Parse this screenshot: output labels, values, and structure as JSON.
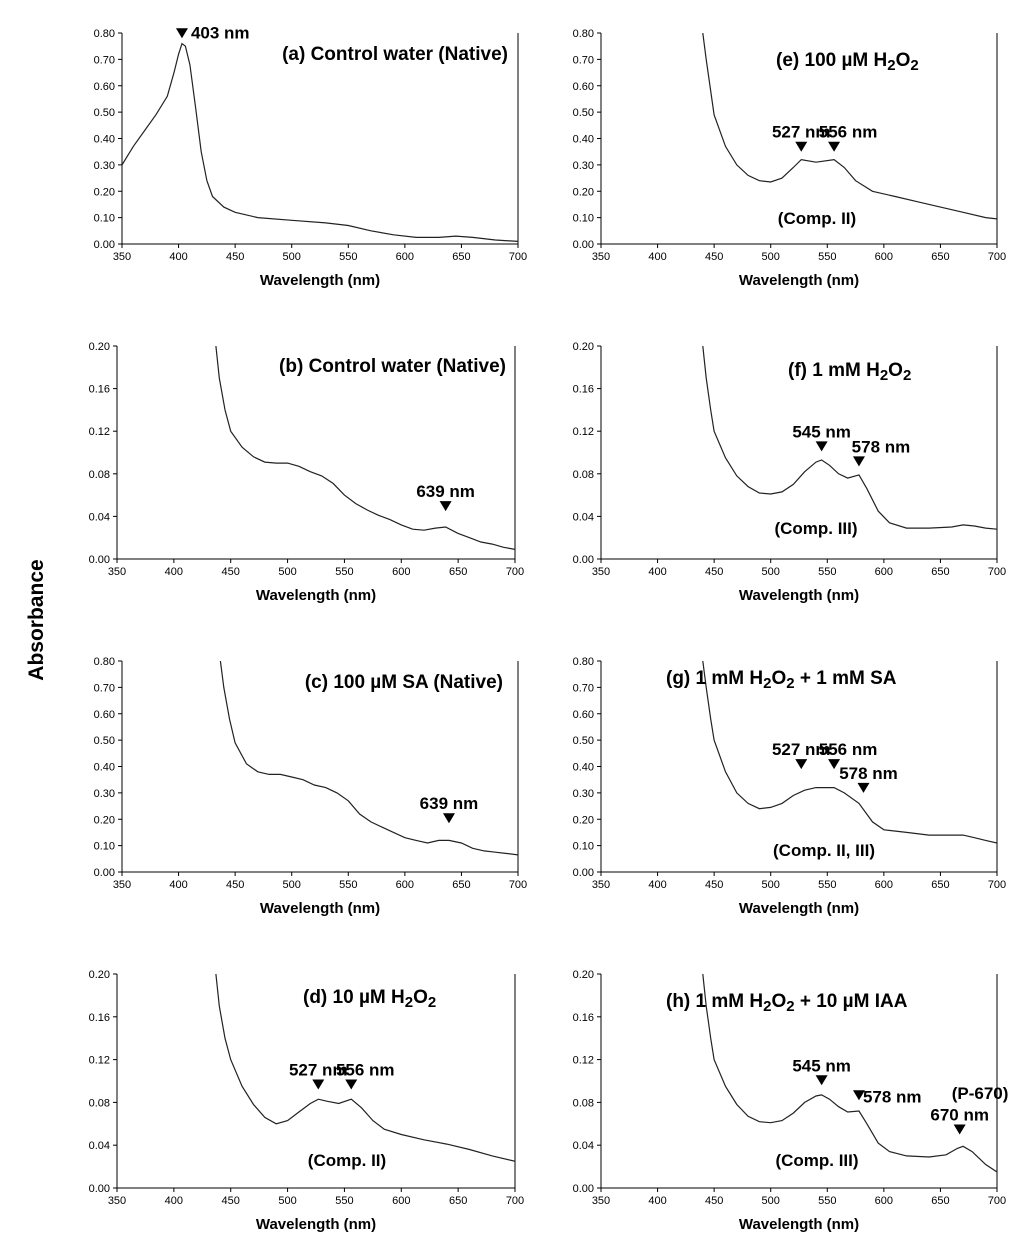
{
  "y_axis_label": "Absorbance",
  "chart_data": [
    {
      "panel": "a",
      "type": "line",
      "title": "(a) Control water (Native)",
      "xlabel": "Wavelength (nm)",
      "xlim": [
        350,
        700
      ],
      "ylim": [
        0,
        0.8
      ],
      "xticks": [
        "350",
        "400",
        "450",
        "500",
        "550",
        "600",
        "650",
        "700"
      ],
      "yticks": [
        "0.00",
        "0.10",
        "0.20",
        "0.30",
        "0.40",
        "0.50",
        "0.60",
        "0.70",
        "0.80"
      ],
      "points": [
        [
          350,
          0.3
        ],
        [
          360,
          0.37
        ],
        [
          370,
          0.43
        ],
        [
          380,
          0.49
        ],
        [
          390,
          0.56
        ],
        [
          396,
          0.65
        ],
        [
          400,
          0.72
        ],
        [
          403,
          0.76
        ],
        [
          406,
          0.75
        ],
        [
          410,
          0.68
        ],
        [
          415,
          0.52
        ],
        [
          420,
          0.35
        ],
        [
          425,
          0.24
        ],
        [
          430,
          0.18
        ],
        [
          440,
          0.14
        ],
        [
          450,
          0.12
        ],
        [
          470,
          0.1
        ],
        [
          500,
          0.09
        ],
        [
          530,
          0.08
        ],
        [
          550,
          0.07
        ],
        [
          570,
          0.05
        ],
        [
          590,
          0.035
        ],
        [
          610,
          0.025
        ],
        [
          630,
          0.025
        ],
        [
          645,
          0.03
        ],
        [
          660,
          0.025
        ],
        [
          680,
          0.015
        ],
        [
          700,
          0.01
        ]
      ],
      "annotations": [
        {
          "label": "403 nm",
          "x": 403,
          "y": 0.78
        }
      ]
    },
    {
      "panel": "b",
      "type": "line",
      "title": "(b) Control water (Native)",
      "xlabel": "Wavelength (nm)",
      "xlim": [
        350,
        700
      ],
      "ylim": [
        0,
        0.2
      ],
      "xticks": [
        "350",
        "400",
        "450",
        "500",
        "550",
        "600",
        "650",
        "700"
      ],
      "yticks": [
        "0.00",
        "0.04",
        "0.08",
        "0.12",
        "0.16",
        "0.20"
      ],
      "points": [
        [
          437,
          0.2
        ],
        [
          440,
          0.17
        ],
        [
          445,
          0.14
        ],
        [
          450,
          0.12
        ],
        [
          460,
          0.105
        ],
        [
          470,
          0.096
        ],
        [
          480,
          0.091
        ],
        [
          490,
          0.09
        ],
        [
          500,
          0.09
        ],
        [
          510,
          0.087
        ],
        [
          520,
          0.082
        ],
        [
          530,
          0.078
        ],
        [
          540,
          0.071
        ],
        [
          550,
          0.06
        ],
        [
          560,
          0.052
        ],
        [
          570,
          0.046
        ],
        [
          580,
          0.041
        ],
        [
          590,
          0.037
        ],
        [
          600,
          0.032
        ],
        [
          610,
          0.028
        ],
        [
          620,
          0.027
        ],
        [
          630,
          0.029
        ],
        [
          639,
          0.03
        ],
        [
          650,
          0.024
        ],
        [
          660,
          0.02
        ],
        [
          670,
          0.016
        ],
        [
          680,
          0.014
        ],
        [
          690,
          0.011
        ],
        [
          700,
          0.009
        ]
      ],
      "annotations": [
        {
          "label": "639 nm",
          "x": 639,
          "y": 0.045
        }
      ]
    },
    {
      "panel": "c",
      "type": "line",
      "title": "(c) 100 µM SA (Native)",
      "xlabel": "Wavelength (nm)",
      "xlim": [
        350,
        700
      ],
      "ylim": [
        0,
        0.8
      ],
      "xticks": [
        "350",
        "400",
        "450",
        "500",
        "550",
        "600",
        "650",
        "700"
      ],
      "yticks": [
        "0.00",
        "0.10",
        "0.20",
        "0.30",
        "0.40",
        "0.50",
        "0.60",
        "0.70",
        "0.80"
      ],
      "points": [
        [
          437,
          0.8
        ],
        [
          440,
          0.7
        ],
        [
          445,
          0.58
        ],
        [
          450,
          0.49
        ],
        [
          460,
          0.41
        ],
        [
          470,
          0.38
        ],
        [
          480,
          0.37
        ],
        [
          490,
          0.37
        ],
        [
          500,
          0.36
        ],
        [
          510,
          0.35
        ],
        [
          520,
          0.33
        ],
        [
          530,
          0.32
        ],
        [
          540,
          0.3
        ],
        [
          550,
          0.27
        ],
        [
          560,
          0.22
        ],
        [
          570,
          0.19
        ],
        [
          580,
          0.17
        ],
        [
          590,
          0.15
        ],
        [
          600,
          0.13
        ],
        [
          610,
          0.12
        ],
        [
          620,
          0.11
        ],
        [
          630,
          0.12
        ],
        [
          639,
          0.12
        ],
        [
          650,
          0.11
        ],
        [
          660,
          0.09
        ],
        [
          670,
          0.08
        ],
        [
          680,
          0.075
        ],
        [
          690,
          0.07
        ],
        [
          700,
          0.065
        ]
      ],
      "annotations": [
        {
          "label": "639 nm",
          "x": 639,
          "y": 0.185
        }
      ]
    },
    {
      "panel": "d",
      "type": "line",
      "title": "(d) 10 µM H₂O₂",
      "xlabel": "Wavelength (nm)",
      "xlim": [
        350,
        700
      ],
      "ylim": [
        0,
        0.2
      ],
      "xticks": [
        "350",
        "400",
        "450",
        "500",
        "550",
        "600",
        "650",
        "700"
      ],
      "yticks": [
        "0.00",
        "0.04",
        "0.08",
        "0.12",
        "0.16",
        "0.20"
      ],
      "points": [
        [
          437,
          0.2
        ],
        [
          440,
          0.17
        ],
        [
          445,
          0.14
        ],
        [
          450,
          0.12
        ],
        [
          460,
          0.095
        ],
        [
          470,
          0.078
        ],
        [
          480,
          0.066
        ],
        [
          490,
          0.06
        ],
        [
          500,
          0.063
        ],
        [
          510,
          0.071
        ],
        [
          520,
          0.079
        ],
        [
          527,
          0.083
        ],
        [
          535,
          0.081
        ],
        [
          545,
          0.079
        ],
        [
          556,
          0.083
        ],
        [
          565,
          0.075
        ],
        [
          575,
          0.063
        ],
        [
          585,
          0.055
        ],
        [
          600,
          0.05
        ],
        [
          620,
          0.045
        ],
        [
          640,
          0.041
        ],
        [
          660,
          0.036
        ],
        [
          680,
          0.03
        ],
        [
          700,
          0.025
        ]
      ],
      "annotations": [
        {
          "label": "527 nm",
          "x": 527,
          "y": 0.092
        },
        {
          "label": "556 nm",
          "x": 556,
          "y": 0.092
        }
      ],
      "note": "(Comp. II)"
    },
    {
      "panel": "e",
      "type": "line",
      "title": "(e) 100 µM H₂O₂",
      "xlabel": "Wavelength (nm)",
      "xlim": [
        350,
        700
      ],
      "ylim": [
        0,
        0.8
      ],
      "xticks": [
        "350",
        "400",
        "450",
        "500",
        "550",
        "600",
        "650",
        "700"
      ],
      "yticks": [
        "0.00",
        "0.10",
        "0.20",
        "0.30",
        "0.40",
        "0.50",
        "0.60",
        "0.70",
        "0.80"
      ],
      "points": [
        [
          440,
          0.8
        ],
        [
          443,
          0.7
        ],
        [
          447,
          0.58
        ],
        [
          450,
          0.49
        ],
        [
          460,
          0.37
        ],
        [
          470,
          0.3
        ],
        [
          480,
          0.26
        ],
        [
          490,
          0.24
        ],
        [
          500,
          0.235
        ],
        [
          510,
          0.25
        ],
        [
          520,
          0.29
        ],
        [
          527,
          0.32
        ],
        [
          540,
          0.31
        ],
        [
          556,
          0.32
        ],
        [
          565,
          0.29
        ],
        [
          575,
          0.24
        ],
        [
          590,
          0.2
        ],
        [
          610,
          0.18
        ],
        [
          630,
          0.16
        ],
        [
          650,
          0.14
        ],
        [
          670,
          0.12
        ],
        [
          690,
          0.1
        ],
        [
          700,
          0.095
        ]
      ],
      "annotations": [
        {
          "label": "527 nm",
          "x": 527,
          "y": 0.35
        },
        {
          "label": "556 nm",
          "x": 556,
          "y": 0.35
        }
      ],
      "note": "(Comp. II)"
    },
    {
      "panel": "f",
      "type": "line",
      "title": "(f) 1 mM H₂O₂",
      "xlabel": "Wavelength (nm)",
      "xlim": [
        350,
        700
      ],
      "ylim": [
        0,
        0.2
      ],
      "xticks": [
        "350",
        "400",
        "450",
        "500",
        "550",
        "600",
        "650",
        "700"
      ],
      "yticks": [
        "0.00",
        "0.04",
        "0.08",
        "0.12",
        "0.16",
        "0.20"
      ],
      "points": [
        [
          440,
          0.2
        ],
        [
          443,
          0.17
        ],
        [
          447,
          0.14
        ],
        [
          450,
          0.12
        ],
        [
          460,
          0.095
        ],
        [
          470,
          0.078
        ],
        [
          480,
          0.068
        ],
        [
          490,
          0.062
        ],
        [
          500,
          0.061
        ],
        [
          510,
          0.063
        ],
        [
          520,
          0.07
        ],
        [
          530,
          0.082
        ],
        [
          540,
          0.091
        ],
        [
          545,
          0.093
        ],
        [
          552,
          0.088
        ],
        [
          560,
          0.08
        ],
        [
          568,
          0.076
        ],
        [
          578,
          0.079
        ],
        [
          585,
          0.066
        ],
        [
          595,
          0.045
        ],
        [
          605,
          0.034
        ],
        [
          620,
          0.029
        ],
        [
          640,
          0.029
        ],
        [
          660,
          0.03
        ],
        [
          670,
          0.032
        ],
        [
          680,
          0.031
        ],
        [
          690,
          0.029
        ],
        [
          700,
          0.028
        ]
      ],
      "annotations": [
        {
          "label": "545 nm",
          "x": 545,
          "y": 0.101
        },
        {
          "label": "578 nm",
          "x": 578,
          "y": 0.087
        }
      ],
      "note": "(Comp. III)"
    },
    {
      "panel": "g",
      "type": "line",
      "title": "(g) 1 mM H₂O₂ + 1 mM SA",
      "xlabel": "Wavelength (nm)",
      "xlim": [
        350,
        700
      ],
      "ylim": [
        0,
        0.8
      ],
      "xticks": [
        "350",
        "400",
        "450",
        "500",
        "550",
        "600",
        "650",
        "700"
      ],
      "yticks": [
        "0.00",
        "0.10",
        "0.20",
        "0.30",
        "0.40",
        "0.50",
        "0.60",
        "0.70",
        "0.80"
      ],
      "points": [
        [
          440,
          0.8
        ],
        [
          443,
          0.7
        ],
        [
          447,
          0.58
        ],
        [
          450,
          0.5
        ],
        [
          460,
          0.38
        ],
        [
          470,
          0.3
        ],
        [
          480,
          0.26
        ],
        [
          490,
          0.24
        ],
        [
          500,
          0.245
        ],
        [
          510,
          0.26
        ],
        [
          520,
          0.29
        ],
        [
          530,
          0.31
        ],
        [
          540,
          0.32
        ],
        [
          556,
          0.32
        ],
        [
          565,
          0.3
        ],
        [
          578,
          0.26
        ],
        [
          590,
          0.19
        ],
        [
          600,
          0.16
        ],
        [
          620,
          0.15
        ],
        [
          640,
          0.14
        ],
        [
          660,
          0.14
        ],
        [
          670,
          0.14
        ],
        [
          680,
          0.13
        ],
        [
          690,
          0.12
        ],
        [
          700,
          0.11
        ]
      ],
      "annotations": [
        {
          "label": "527 nm",
          "x": 527,
          "y": 0.39
        },
        {
          "label": "556 nm",
          "x": 556,
          "y": 0.39
        },
        {
          "label": "578 nm",
          "x": 582,
          "y": 0.3
        }
      ],
      "note": "(Comp. II, III)"
    },
    {
      "panel": "h",
      "type": "line",
      "title": "(h) 1 mM H₂O₂ + 10 µM IAA",
      "xlabel": "Wavelength (nm)",
      "xlim": [
        350,
        700
      ],
      "ylim": [
        0,
        0.2
      ],
      "xticks": [
        "350",
        "400",
        "450",
        "500",
        "550",
        "600",
        "650",
        "700"
      ],
      "yticks": [
        "0.00",
        "0.04",
        "0.08",
        "0.12",
        "0.16",
        "0.20"
      ],
      "points": [
        [
          440,
          0.2
        ],
        [
          443,
          0.17
        ],
        [
          447,
          0.14
        ],
        [
          450,
          0.12
        ],
        [
          460,
          0.095
        ],
        [
          470,
          0.078
        ],
        [
          480,
          0.067
        ],
        [
          490,
          0.062
        ],
        [
          500,
          0.061
        ],
        [
          510,
          0.063
        ],
        [
          520,
          0.07
        ],
        [
          530,
          0.08
        ],
        [
          540,
          0.086
        ],
        [
          545,
          0.087
        ],
        [
          552,
          0.083
        ],
        [
          560,
          0.076
        ],
        [
          568,
          0.071
        ],
        [
          578,
          0.072
        ],
        [
          585,
          0.06
        ],
        [
          595,
          0.042
        ],
        [
          605,
          0.034
        ],
        [
          620,
          0.03
        ],
        [
          640,
          0.029
        ],
        [
          655,
          0.031
        ],
        [
          665,
          0.037
        ],
        [
          670,
          0.039
        ],
        [
          678,
          0.034
        ],
        [
          690,
          0.022
        ],
        [
          700,
          0.015
        ]
      ],
      "annotations": [
        {
          "label": "545 nm",
          "x": 545,
          "y": 0.096
        },
        {
          "label": "578 nm",
          "x": 578,
          "y": 0.082
        },
        {
          "label": "670 nm",
          "x": 667,
          "y": 0.05
        }
      ],
      "extra_label": "(P-670)",
      "note": "(Comp. III)"
    }
  ]
}
